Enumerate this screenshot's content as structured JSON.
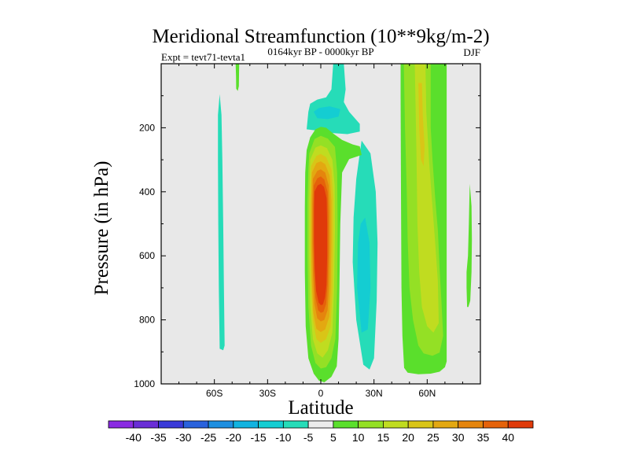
{
  "chart_data": {
    "type": "contour",
    "title": "Meridional Streamfunction (10**9kg/m-2)",
    "left_string": "Expt = tevt71-tevta1",
    "center_string": "0164kyr BP - 0000kyr BP",
    "right_string": "DJF",
    "xlabel": "Latitude",
    "ylabel": "Pressure (in hPa)",
    "xlim": [
      -90,
      90
    ],
    "ylim": [
      1000,
      0
    ],
    "x_ticks": [
      {
        "value": -60,
        "label": "60S"
      },
      {
        "value": -30,
        "label": "30S"
      },
      {
        "value": 0,
        "label": "0"
      },
      {
        "value": 30,
        "label": "30N"
      },
      {
        "value": 60,
        "label": "60N"
      }
    ],
    "y_ticks": [
      {
        "value": 200,
        "label": "200"
      },
      {
        "value": 400,
        "label": "400"
      },
      {
        "value": 600,
        "label": "600"
      },
      {
        "value": 800,
        "label": "800"
      },
      {
        "value": 1000,
        "label": "1000"
      }
    ],
    "background_color": "#e8e8e8",
    "colorbar": {
      "levels": [
        "-40",
        "-35",
        "-30",
        "-25",
        "-20",
        "-15",
        "-10",
        "-5",
        "5",
        "10",
        "15",
        "20",
        "25",
        "30",
        "35",
        "40"
      ],
      "colors": [
        "#8a2be2",
        "#6a2ed6",
        "#3a3ad8",
        "#2a62dc",
        "#1e8fe0",
        "#11b3e0",
        "#14cdd2",
        "#26dcb8",
        "#ececec",
        "#5adf2c",
        "#94e025",
        "#c0dc20",
        "#d9c517",
        "#e3a811",
        "#e5850d",
        "#e5620a",
        "#e03a0a"
      ]
    },
    "regions": [
      {
        "name": "sh-mid-negative-band",
        "level_index": 7,
        "points": [
          [
            -57,
            95
          ],
          [
            -56,
            160
          ],
          [
            -55.5,
            300
          ],
          [
            -55,
            500
          ],
          [
            -54.6,
            700
          ],
          [
            -54.2,
            880
          ],
          [
            -55,
            895
          ],
          [
            -57,
            890
          ],
          [
            -57.5,
            700
          ],
          [
            -57.8,
            500
          ],
          [
            -58,
            300
          ],
          [
            -58,
            160
          ]
        ]
      },
      {
        "name": "sh-upper-positive-strip",
        "level_index": 9,
        "points": [
          [
            -48,
            0
          ],
          [
            -46,
            0
          ],
          [
            -46.2,
            70
          ],
          [
            -46.8,
            85
          ],
          [
            -47.7,
            78
          ],
          [
            -47.8,
            40
          ]
        ]
      },
      {
        "name": "upper-negative-cell",
        "level_index": 7,
        "points": [
          [
            -7,
            150
          ],
          [
            -6,
            125
          ],
          [
            -2,
            112
          ],
          [
            3,
            105
          ],
          [
            6,
            80
          ],
          [
            7,
            0
          ],
          [
            13,
            0
          ],
          [
            14,
            80
          ],
          [
            13,
            120
          ],
          [
            16,
            150
          ],
          [
            22,
            188
          ],
          [
            22,
            212
          ],
          [
            15,
            220
          ],
          [
            5,
            216
          ],
          [
            -3,
            208
          ],
          [
            -8,
            205
          ]
        ]
      },
      {
        "name": "upper-negative-core",
        "level_index": 6,
        "points": [
          [
            -4,
            150
          ],
          [
            -1,
            138
          ],
          [
            5,
            133
          ],
          [
            11,
            142
          ],
          [
            10,
            165
          ],
          [
            4,
            173
          ],
          [
            -2,
            170
          ]
        ]
      },
      {
        "name": "ne-negative-cell",
        "level_index": 7,
        "points": [
          [
            23,
            240
          ],
          [
            28,
            280
          ],
          [
            31,
            400
          ],
          [
            32,
            560
          ],
          [
            31.5,
            740
          ],
          [
            30,
            920
          ],
          [
            27.5,
            955
          ],
          [
            24,
            940
          ],
          [
            20,
            800
          ],
          [
            18,
            620
          ],
          [
            18.5,
            480
          ],
          [
            20,
            360
          ],
          [
            22,
            280
          ]
        ]
      },
      {
        "name": "ne-negative-core",
        "level_index": 6,
        "points": [
          [
            25,
            480
          ],
          [
            27.5,
            560
          ],
          [
            28,
            700
          ],
          [
            26.5,
            830
          ],
          [
            23,
            840
          ],
          [
            20.5,
            700
          ],
          [
            21,
            560
          ],
          [
            22.5,
            500
          ]
        ]
      },
      {
        "name": "hadley-positive-envelope",
        "level_index": 9,
        "points": [
          [
            -8,
            270
          ],
          [
            -6,
            230
          ],
          [
            -3,
            205
          ],
          [
            0,
            197
          ],
          [
            3,
            200
          ],
          [
            7,
            218
          ],
          [
            12,
            238
          ],
          [
            18,
            252
          ],
          [
            22,
            258
          ],
          [
            23,
            285
          ],
          [
            16,
            298
          ],
          [
            12,
            340
          ],
          [
            11,
            500
          ],
          [
            10.5,
            700
          ],
          [
            10,
            860
          ],
          [
            9,
            945
          ],
          [
            6,
            978
          ],
          [
            2,
            995
          ],
          [
            -1,
            990
          ],
          [
            -4,
            968
          ],
          [
            -7,
            920
          ],
          [
            -8.5,
            820
          ],
          [
            -9,
            650
          ],
          [
            -9,
            450
          ],
          [
            -8.8,
            340
          ]
        ]
      },
      {
        "name": "hadley-l10",
        "level_index": 10,
        "points": [
          [
            -6.5,
            280
          ],
          [
            -3.5,
            235
          ],
          [
            0,
            225
          ],
          [
            4,
            234
          ],
          [
            8,
            260
          ],
          [
            9.2,
            340
          ],
          [
            9.5,
            500
          ],
          [
            9.2,
            700
          ],
          [
            8.2,
            860
          ],
          [
            6,
            920
          ],
          [
            3,
            948
          ],
          [
            0,
            952
          ],
          [
            -3,
            935
          ],
          [
            -5.5,
            880
          ],
          [
            -7,
            760
          ],
          [
            -7.5,
            600
          ],
          [
            -7.5,
            430
          ],
          [
            -7,
            330
          ]
        ]
      },
      {
        "name": "hadley-l11",
        "level_index": 11,
        "points": [
          [
            -6,
            300
          ],
          [
            -3,
            262
          ],
          [
            0,
            255
          ],
          [
            3.5,
            264
          ],
          [
            6.5,
            300
          ],
          [
            7.8,
            380
          ],
          [
            8,
            520
          ],
          [
            7.5,
            700
          ],
          [
            6.5,
            840
          ],
          [
            4,
            895
          ],
          [
            1,
            918
          ],
          [
            -2,
            905
          ],
          [
            -4.5,
            860
          ],
          [
            -6,
            750
          ],
          [
            -6.5,
            600
          ],
          [
            -6.5,
            430
          ]
        ]
      },
      {
        "name": "hadley-l12",
        "level_index": 12,
        "points": [
          [
            -5.5,
            320
          ],
          [
            -2.5,
            288
          ],
          [
            0,
            282
          ],
          [
            3,
            292
          ],
          [
            6,
            330
          ],
          [
            7,
            420
          ],
          [
            7,
            560
          ],
          [
            6.5,
            720
          ],
          [
            5.5,
            820
          ],
          [
            3,
            860
          ],
          [
            0,
            872
          ],
          [
            -2.5,
            860
          ],
          [
            -4.5,
            800
          ],
          [
            -5.5,
            690
          ],
          [
            -6,
            560
          ],
          [
            -6,
            430
          ]
        ]
      },
      {
        "name": "hadley-l13",
        "level_index": 13,
        "points": [
          [
            -5,
            340
          ],
          [
            -2.5,
            310
          ],
          [
            0,
            305
          ],
          [
            2.5,
            314
          ],
          [
            5,
            350
          ],
          [
            6,
            430
          ],
          [
            6,
            560
          ],
          [
            5.6,
            700
          ],
          [
            4.8,
            790
          ],
          [
            2.5,
            830
          ],
          [
            0,
            838
          ],
          [
            -2.5,
            828
          ],
          [
            -4.2,
            778
          ],
          [
            -5,
            680
          ],
          [
            -5.4,
            560
          ],
          [
            -5.4,
            430
          ]
        ]
      },
      {
        "name": "hadley-l14",
        "level_index": 14,
        "points": [
          [
            -4.5,
            360
          ],
          [
            -2,
            335
          ],
          [
            0,
            330
          ],
          [
            2.5,
            340
          ],
          [
            4.5,
            380
          ],
          [
            5,
            460
          ],
          [
            5,
            580
          ],
          [
            4.6,
            700
          ],
          [
            3.8,
            770
          ],
          [
            2,
            800
          ],
          [
            0,
            805
          ],
          [
            -2,
            795
          ],
          [
            -3.6,
            750
          ],
          [
            -4.4,
            660
          ],
          [
            -4.8,
            560
          ],
          [
            -4.8,
            440
          ]
        ]
      },
      {
        "name": "hadley-l15",
        "level_index": 15,
        "points": [
          [
            -4,
            380
          ],
          [
            -2,
            358
          ],
          [
            0,
            352
          ],
          [
            2,
            362
          ],
          [
            3.8,
            400
          ],
          [
            4.2,
            480
          ],
          [
            4.2,
            590
          ],
          [
            3.8,
            690
          ],
          [
            3,
            750
          ],
          [
            1.5,
            775
          ],
          [
            0,
            778
          ],
          [
            -1.5,
            770
          ],
          [
            -3,
            730
          ],
          [
            -3.8,
            650
          ],
          [
            -4.2,
            560
          ],
          [
            -4.2,
            450
          ]
        ]
      },
      {
        "name": "hadley-l16",
        "level_index": 16,
        "points": [
          [
            -3.6,
            400
          ],
          [
            -1.8,
            380
          ],
          [
            0,
            375
          ],
          [
            1.8,
            385
          ],
          [
            3.3,
            420
          ],
          [
            3.6,
            500
          ],
          [
            3.6,
            600
          ],
          [
            3.2,
            690
          ],
          [
            2.4,
            730
          ],
          [
            1.2,
            752
          ],
          [
            0,
            754
          ],
          [
            -1.2,
            746
          ],
          [
            -2.6,
            710
          ],
          [
            -3.4,
            640
          ],
          [
            -3.8,
            550
          ],
          [
            -3.8,
            460
          ]
        ]
      },
      {
        "name": "nh-positive-band-l9",
        "level_index": 9,
        "points": [
          [
            45,
            0
          ],
          [
            71,
            0
          ],
          [
            71,
            930
          ],
          [
            70,
            948
          ],
          [
            67,
            962
          ],
          [
            62,
            968
          ],
          [
            55,
            970
          ],
          [
            49,
            965
          ],
          [
            47,
            950
          ],
          [
            46,
            850
          ],
          [
            45.5,
            700
          ],
          [
            45.2,
            400
          ],
          [
            45,
            100
          ]
        ]
      },
      {
        "name": "nh-positive-band-l10",
        "level_index": 10,
        "points": [
          [
            46.8,
            0
          ],
          [
            62,
            0
          ],
          [
            62,
            200
          ],
          [
            63,
            300
          ],
          [
            64.5,
            420
          ],
          [
            66,
            520
          ],
          [
            67,
            640
          ],
          [
            68,
            740
          ],
          [
            69,
            850
          ],
          [
            67,
            902
          ],
          [
            63,
            912
          ],
          [
            58,
            905
          ],
          [
            55,
            880
          ],
          [
            52,
            800
          ],
          [
            50,
            700
          ],
          [
            49,
            550
          ],
          [
            48.5,
            400
          ],
          [
            47.5,
            200
          ]
        ]
      },
      {
        "name": "nh-positive-band-l11",
        "level_index": 11,
        "points": [
          [
            53,
            0
          ],
          [
            59,
            0
          ],
          [
            59.5,
            150
          ],
          [
            61,
            300
          ],
          [
            63,
            450
          ],
          [
            64.5,
            560
          ],
          [
            66,
            680
          ],
          [
            66.5,
            810
          ],
          [
            63.5,
            840
          ],
          [
            60,
            820
          ],
          [
            57,
            760
          ],
          [
            55.5,
            650
          ],
          [
            54.5,
            500
          ],
          [
            54,
            300
          ],
          [
            53.5,
            150
          ]
        ]
      },
      {
        "name": "nh-positive-band-l12",
        "level_index": 12,
        "points": [
          [
            55,
            60
          ],
          [
            57,
            60
          ],
          [
            57.5,
            160
          ],
          [
            58.5,
            260
          ],
          [
            58,
            320
          ],
          [
            56.5,
            300
          ],
          [
            55.5,
            200
          ]
        ]
      },
      {
        "name": "nh-edge-sliver",
        "level_index": 9,
        "points": [
          [
            84,
            375
          ],
          [
            85,
            445
          ],
          [
            85.2,
            550
          ],
          [
            85,
            650
          ],
          [
            84.3,
            740
          ],
          [
            83.2,
            760
          ],
          [
            82.5,
            760
          ],
          [
            82.2,
            700
          ],
          [
            82.2,
            650
          ],
          [
            83,
            600
          ],
          [
            83.5,
            500
          ],
          [
            83.8,
            420
          ]
        ]
      }
    ]
  }
}
